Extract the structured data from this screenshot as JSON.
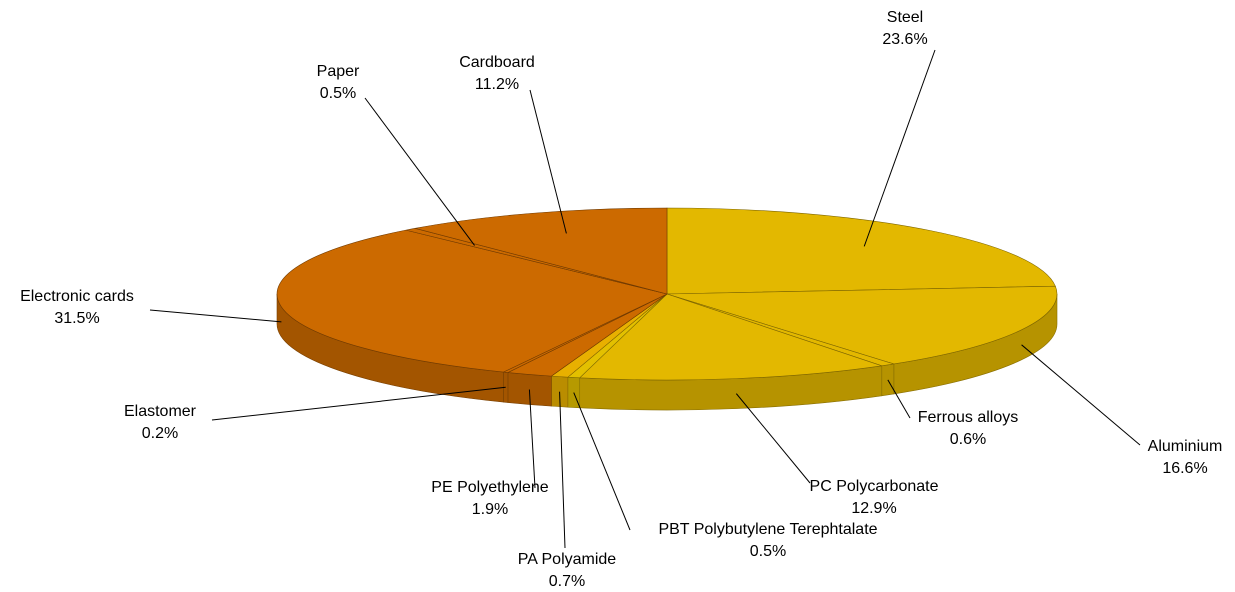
{
  "chart_data": {
    "type": "pie3d",
    "categories": [
      "Steel",
      "Aluminium",
      "Ferrous alloys",
      "PC Polycarbonate",
      "PBT Polybutylene Terephtalate",
      "PA Polyamide",
      "PE Polyethylene",
      "Elastomer",
      "Electronic cards",
      "Paper",
      "Cardboard"
    ],
    "values": [
      23.6,
      16.6,
      0.6,
      12.9,
      0.5,
      0.7,
      1.9,
      0.2,
      31.5,
      0.5,
      11.2
    ],
    "value_labels": [
      "23.6%",
      "16.6%",
      "0.6%",
      "12.9%",
      "0.5%",
      "0.7%",
      "1.9%",
      "0.2%",
      "31.5%",
      "0.5%",
      "11.2%"
    ],
    "colors": [
      "#e3b800",
      "#e3b800",
      "#e3b800",
      "#e3b800",
      "#e3c000",
      "#e8b000",
      "#cc6a00",
      "#cc6a00",
      "#cc6a00",
      "#cc6a00",
      "#cc6a00"
    ]
  }
}
